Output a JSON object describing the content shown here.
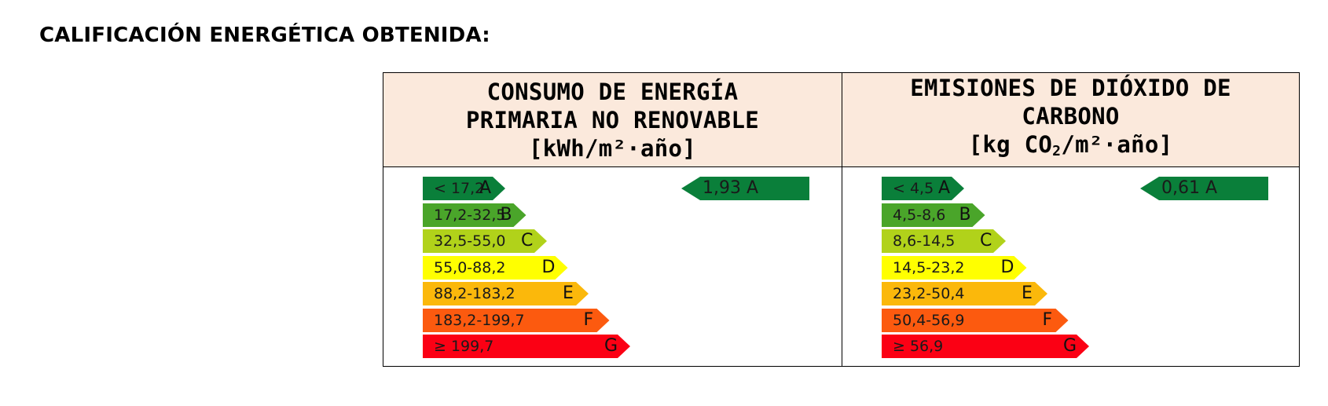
{
  "heading": "CALIFICACIÓN ENERGÉTICA OBTENIDA:",
  "colors": {
    "A": "#0a7f3a",
    "B": "#4aa52a",
    "C": "#b1d21a",
    "D": "#ffff00",
    "E": "#fbb80b",
    "F": "#fc5a0f",
    "G": "#fb0014",
    "header_bg": "#fbe9dc"
  },
  "energy": {
    "title_line1": "CONSUMO DE ENERGÍA",
    "title_line2": "PRIMARIA NO RENOVABLE",
    "unit": "[kWh/m²·año]",
    "bands": [
      {
        "range": "< 17,2",
        "letter": "A"
      },
      {
        "range": "17,2-32,5",
        "letter": "B"
      },
      {
        "range": "32,5-55,0",
        "letter": "C"
      },
      {
        "range": "55,0-88,2",
        "letter": "D"
      },
      {
        "range": "88,2-183,2",
        "letter": "E"
      },
      {
        "range": "183,2-199,7",
        "letter": "F"
      },
      {
        "range": "≥ 199,7",
        "letter": "G"
      }
    ],
    "result": "1,93 A"
  },
  "emissions": {
    "title_line1": "EMISIONES DE DIÓXIDO DE",
    "title_line2": "CARBONO",
    "unit_prefix": "[kg CO",
    "unit_sub": "2",
    "unit_suffix": "/m²·año]",
    "bands": [
      {
        "range": "< 4,5",
        "letter": "A"
      },
      {
        "range": "4,5-8,6",
        "letter": "B"
      },
      {
        "range": "8,6-14,5",
        "letter": "C"
      },
      {
        "range": "14,5-23,2",
        "letter": "D"
      },
      {
        "range": "23,2-50,4",
        "letter": "E"
      },
      {
        "range": "50,4-56,9",
        "letter": "F"
      },
      {
        "range": "≥ 56,9",
        "letter": "G"
      }
    ],
    "result": "0,61 A"
  }
}
